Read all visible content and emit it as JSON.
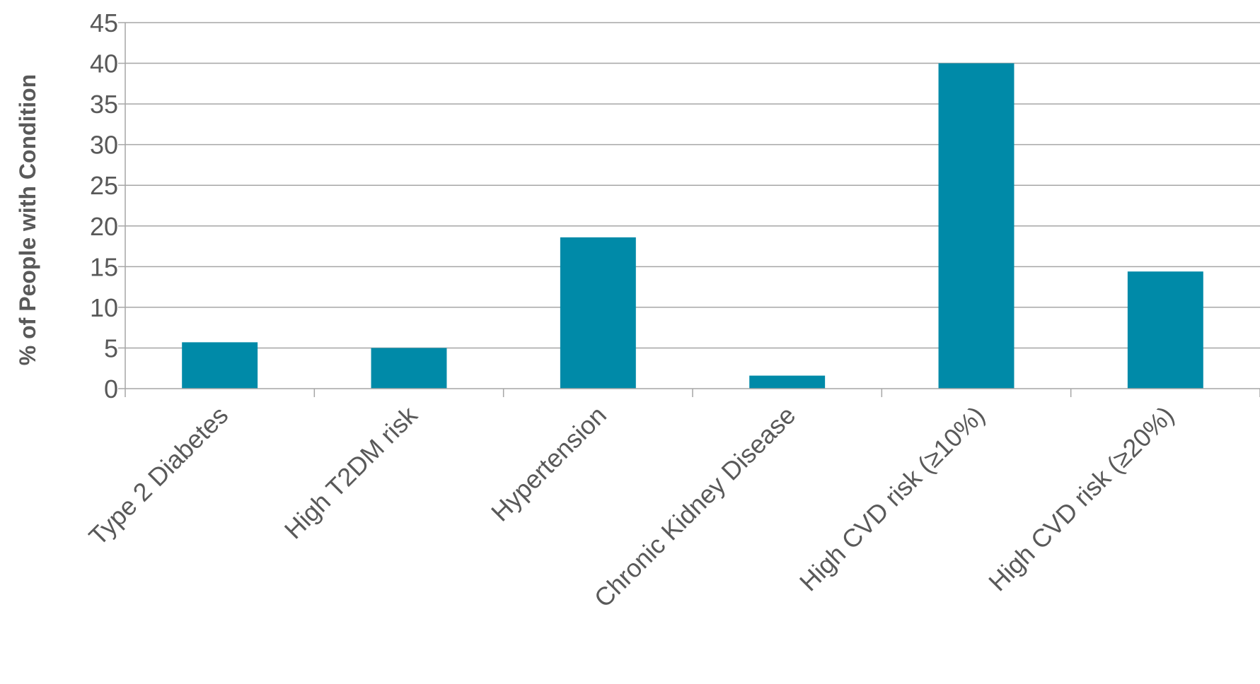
{
  "chart_data": {
    "type": "bar",
    "title": "",
    "xlabel": "",
    "ylabel": "% of People with Condition",
    "ylim": [
      0,
      45
    ],
    "yticks": [
      0,
      5,
      10,
      15,
      20,
      25,
      30,
      35,
      40,
      45
    ],
    "grid": true,
    "legend": "none",
    "bar_color": "#008aa8",
    "categories": [
      "Type 2 Diabetes",
      "High T2DM risk",
      "Hypertension",
      "Chronic Kidney Disease",
      "High CVD risk (≥10%)",
      "High CVD risk (≥20%)"
    ],
    "values": [
      5.7,
      5.0,
      18.6,
      1.6,
      40.0,
      14.4
    ]
  }
}
